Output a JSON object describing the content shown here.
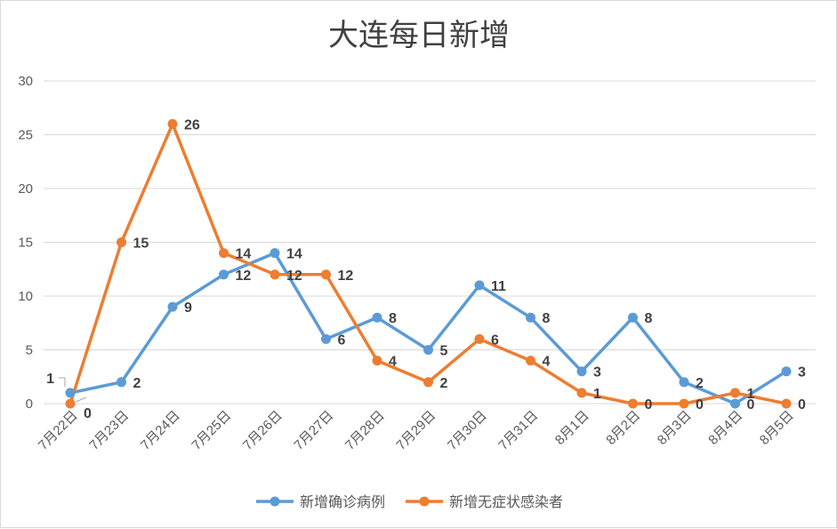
{
  "chart_data": {
    "type": "line",
    "title": "大连每日新增",
    "xlabel": "",
    "ylabel": "",
    "categories": [
      "7月22日",
      "7月23日",
      "7月24日",
      "7月25日",
      "7月26日",
      "7月27日",
      "7月28日",
      "7月29日",
      "7月30日",
      "7月31日",
      "8月1日",
      "8月2日",
      "8月3日",
      "8月4日",
      "8月5日"
    ],
    "ylim": [
      0,
      30
    ],
    "yticks": [
      0,
      5,
      10,
      15,
      20,
      25,
      30
    ],
    "grid": true,
    "legend_position": "bottom",
    "series": [
      {
        "name": "新增确诊病例",
        "color": "#5b9bd5",
        "values": [
          1,
          2,
          9,
          12,
          14,
          6,
          8,
          5,
          11,
          8,
          3,
          8,
          2,
          0,
          3
        ]
      },
      {
        "name": "新增无症状感染者",
        "color": "#ed7d31",
        "values": [
          0,
          15,
          26,
          14,
          12,
          12,
          4,
          2,
          6,
          4,
          1,
          0,
          0,
          1,
          0
        ]
      }
    ]
  }
}
